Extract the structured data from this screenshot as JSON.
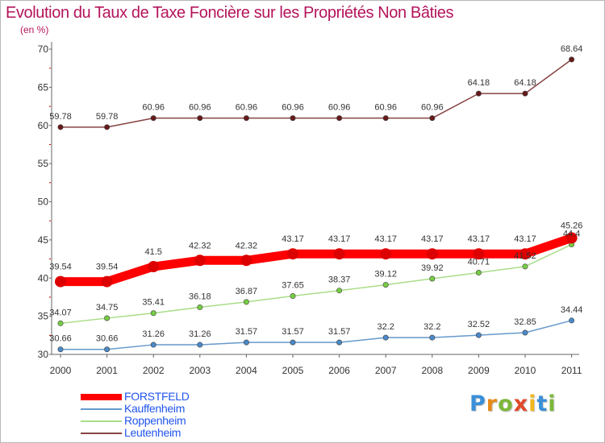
{
  "header": {
    "title": "Evolution du Taux de Taxe Foncière sur les Propriétés Non Bâties",
    "subtitle": "(en %)"
  },
  "brand": {
    "letters": [
      "P",
      "r",
      "o",
      "x",
      "i",
      "t",
      "i"
    ],
    "colors": [
      "#3a8fd8",
      "#e68a1c",
      "#7cb83a",
      "#e04a2a",
      "#f0b81c",
      "#3a8fd8",
      "#7cb83a"
    ]
  },
  "chart_data": {
    "type": "line",
    "title": "Evolution du Taux de Taxe Foncière sur les Propriétés Non Bâties",
    "ylabel": "(en %)",
    "xlabel": "",
    "x": [
      "2000",
      "2001",
      "2002",
      "2003",
      "2004",
      "2005",
      "2006",
      "2007",
      "2008",
      "2009",
      "2010",
      "2011"
    ],
    "ylim": [
      30,
      70
    ],
    "yticks": [
      "30",
      "35",
      "40",
      "45",
      "50",
      "55",
      "60",
      "65",
      "70"
    ],
    "grid": false,
    "legend_position": "bottom-left",
    "series": [
      {
        "name": "FORSTFELD",
        "color": "#ff0000",
        "marker_color": "#dd0000",
        "values": [
          39.54,
          39.54,
          41.5,
          42.32,
          42.32,
          43.17,
          43.17,
          43.17,
          43.17,
          43.17,
          43.17,
          45.26
        ],
        "labels": [
          "39.54",
          "39.54",
          "41.5",
          "42.32",
          "42.32",
          "43.17",
          "43.17",
          "43.17",
          "43.17",
          "43.17",
          "43.17",
          "45.26"
        ]
      },
      {
        "name": "Kauffenheim",
        "color": "#6699cc",
        "marker_color": "#4a89c8",
        "values": [
          30.66,
          30.66,
          31.26,
          31.26,
          31.57,
          31.57,
          31.57,
          32.2,
          32.2,
          32.52,
          32.85,
          34.44
        ],
        "labels": [
          "30.66",
          "30.66",
          "31.26",
          "31.26",
          "31.57",
          "31.57",
          "31.57",
          "32.2",
          "32.2",
          "32.52",
          "32.85",
          "34.44"
        ]
      },
      {
        "name": "Roppenheim",
        "color": "#aadd88",
        "marker_color": "#77cc44",
        "values": [
          34.07,
          34.75,
          35.41,
          36.18,
          36.87,
          37.65,
          38.37,
          39.12,
          39.92,
          40.71,
          41.52,
          44.4
        ],
        "labels": [
          "34.07",
          "34.75",
          "35.41",
          "36.18",
          "36.87",
          "37.65",
          "38.37",
          "39.12",
          "39.92",
          "40.71",
          "41.52",
          "44.4"
        ]
      },
      {
        "name": "Leutenheim",
        "color": "#884444",
        "marker_color": "#661a1a",
        "values": [
          59.78,
          59.78,
          60.96,
          60.96,
          60.96,
          60.96,
          60.96,
          60.96,
          60.96,
          64.18,
          64.18,
          68.64
        ],
        "labels": [
          "59.78",
          "59.78",
          "60.96",
          "60.96",
          "60.96",
          "60.96",
          "60.96",
          "60.96",
          "60.96",
          "64.18",
          "64.18",
          "68.64"
        ]
      }
    ]
  }
}
